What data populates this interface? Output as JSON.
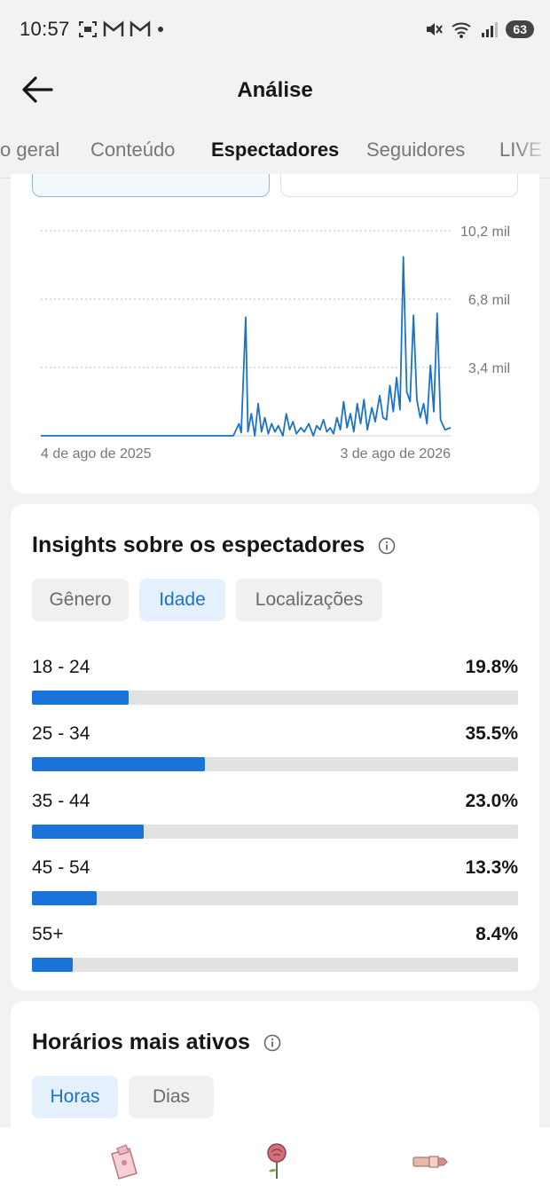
{
  "status_bar": {
    "time": "10:57",
    "battery": "63",
    "left_icons": [
      "screenshot-icon",
      "gmail-icon",
      "gmail-icon",
      "dot-icon"
    ],
    "right_icons": [
      "mute-icon",
      "wifi-icon",
      "signal-icon",
      "battery-icon"
    ]
  },
  "header": {
    "title": "Análise"
  },
  "tabs": [
    {
      "label": "o geral",
      "active": false
    },
    {
      "label": "Conteúdo",
      "active": false
    },
    {
      "label": "Espectadores",
      "active": true
    },
    {
      "label": "Seguidores",
      "active": false
    },
    {
      "label": "LIVE",
      "active": false
    }
  ],
  "chart_data": {
    "type": "line",
    "y_ticks": [
      "10,2 mil",
      "6,8 mil",
      "3,4 mil"
    ],
    "y_tick_values": [
      10200,
      6800,
      3400
    ],
    "ylim": [
      0,
      10200
    ],
    "x_labels": [
      "4 de ago de 2025",
      "3 de ago de 2026"
    ],
    "x_range": [
      "2025-08-04",
      "2026-08-03"
    ],
    "grid": true,
    "series": [
      {
        "color": "#1a73c8",
        "points": [
          [
            "2025-08-04",
            0
          ],
          [
            "2026-01-22",
            0
          ],
          [
            "2026-01-27",
            600
          ],
          [
            "2026-01-29",
            150
          ],
          [
            "2026-02-02",
            5900
          ],
          [
            "2026-02-04",
            200
          ],
          [
            "2026-02-07",
            1100
          ],
          [
            "2026-02-10",
            0
          ],
          [
            "2026-02-13",
            1600
          ],
          [
            "2026-02-16",
            200
          ],
          [
            "2026-02-19",
            900
          ],
          [
            "2026-02-22",
            100
          ],
          [
            "2026-02-25",
            600
          ],
          [
            "2026-02-28",
            200
          ],
          [
            "2026-03-03",
            500
          ],
          [
            "2026-03-07",
            0
          ],
          [
            "2026-03-10",
            1100
          ],
          [
            "2026-03-13",
            300
          ],
          [
            "2026-03-16",
            700
          ],
          [
            "2026-03-19",
            100
          ],
          [
            "2026-03-23",
            400
          ],
          [
            "2026-03-26",
            200
          ],
          [
            "2026-03-30",
            600
          ],
          [
            "2026-04-03",
            0
          ],
          [
            "2026-04-06",
            500
          ],
          [
            "2026-04-09",
            300
          ],
          [
            "2026-04-12",
            800
          ],
          [
            "2026-04-15",
            200
          ],
          [
            "2026-04-18",
            400
          ],
          [
            "2026-04-21",
            100
          ],
          [
            "2026-04-24",
            900
          ],
          [
            "2026-04-27",
            300
          ],
          [
            "2026-04-30",
            1700
          ],
          [
            "2026-05-03",
            400
          ],
          [
            "2026-05-06",
            1100
          ],
          [
            "2026-05-09",
            200
          ],
          [
            "2026-05-12",
            1600
          ],
          [
            "2026-05-15",
            600
          ],
          [
            "2026-05-18",
            1800
          ],
          [
            "2026-05-21",
            300
          ],
          [
            "2026-05-25",
            1400
          ],
          [
            "2026-05-28",
            700
          ],
          [
            "2026-06-01",
            2000
          ],
          [
            "2026-06-04",
            900
          ],
          [
            "2026-06-07",
            800
          ],
          [
            "2026-06-10",
            2500
          ],
          [
            "2026-06-13",
            1200
          ],
          [
            "2026-06-16",
            2900
          ],
          [
            "2026-06-19",
            1300
          ],
          [
            "2026-06-22",
            8900
          ],
          [
            "2026-06-25",
            2200
          ],
          [
            "2026-06-28",
            1700
          ],
          [
            "2026-07-01",
            6000
          ],
          [
            "2026-07-04",
            1800
          ],
          [
            "2026-07-07",
            900
          ],
          [
            "2026-07-10",
            1600
          ],
          [
            "2026-07-13",
            600
          ],
          [
            "2026-07-16",
            3500
          ],
          [
            "2026-07-19",
            1200
          ],
          [
            "2026-07-22",
            6100
          ],
          [
            "2026-07-25",
            800
          ],
          [
            "2026-07-29",
            300
          ],
          [
            "2026-08-03",
            400
          ]
        ]
      }
    ]
  },
  "insights": {
    "title": "Insights sobre os espectadores",
    "pills": [
      {
        "label": "Gênero",
        "active": false
      },
      {
        "label": "Idade",
        "active": true
      },
      {
        "label": "Localizações",
        "active": false
      }
    ],
    "age_rows": [
      {
        "label": "18 - 24",
        "pct": "19.8%",
        "value": 19.8
      },
      {
        "label": "25 - 34",
        "pct": "35.5%",
        "value": 35.5
      },
      {
        "label": "35 - 44",
        "pct": "23.0%",
        "value": 23.0
      },
      {
        "label": "45 - 54",
        "pct": "13.3%",
        "value": 13.3
      },
      {
        "label": "55+",
        "pct": "8.4%",
        "value": 8.4
      }
    ]
  },
  "active_hours": {
    "title": "Horários mais ativos",
    "pills": [
      {
        "label": "Horas",
        "active": true
      },
      {
        "label": "Dias",
        "active": false
      }
    ]
  },
  "bottom_bar": {
    "icons": [
      "perfume-sticker-icon",
      "rose-sticker-icon",
      "lipstick-sticker-icon"
    ]
  },
  "colors": {
    "accent": "#1a73c8",
    "bar_fill": "#1a73d9",
    "active_pill_bg": "#e4f0fb"
  }
}
